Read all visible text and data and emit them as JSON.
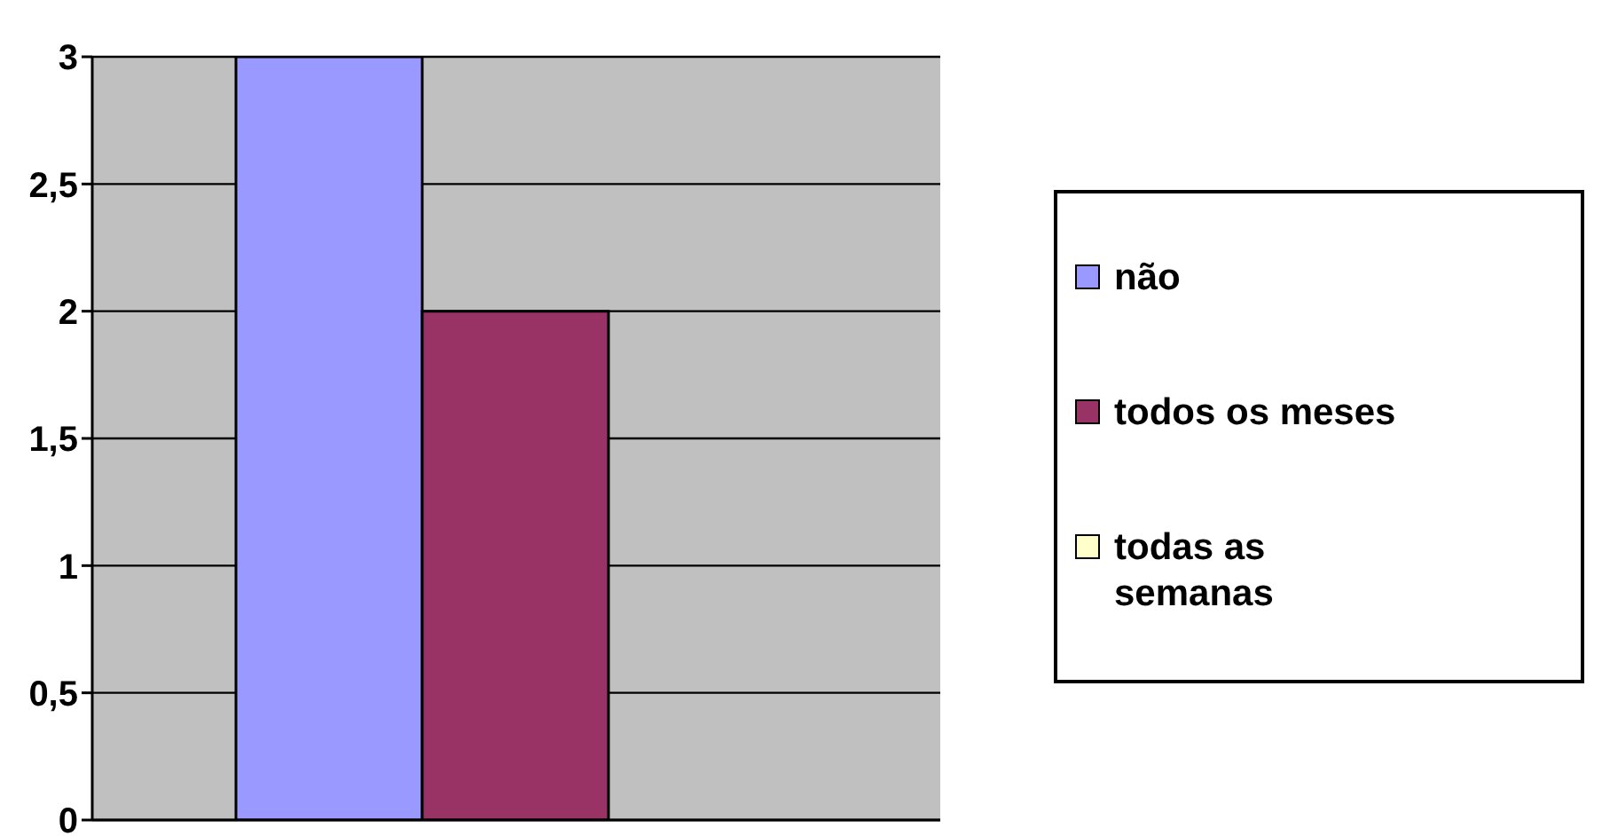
{
  "chart_data": {
    "type": "bar",
    "categories": [
      null
    ],
    "series": [
      {
        "name": "não",
        "color": "#9999ff",
        "values": [
          3
        ]
      },
      {
        "name": "todos os meses",
        "color": "#993366",
        "values": [
          2
        ]
      },
      {
        "name": "todas as semanas",
        "color": "#ffffcc",
        "values": [
          0
        ]
      }
    ],
    "ylim": [
      0,
      3
    ],
    "yticks": [
      0,
      {
        "value": 0.5,
        "label": "0,5"
      },
      1,
      {
        "value": 1.5,
        "label": "1,5"
      },
      2,
      {
        "value": 2.5,
        "label": "2,5"
      },
      3
    ],
    "grid": "y",
    "legend": "right",
    "tick_labels": "y"
  }
}
